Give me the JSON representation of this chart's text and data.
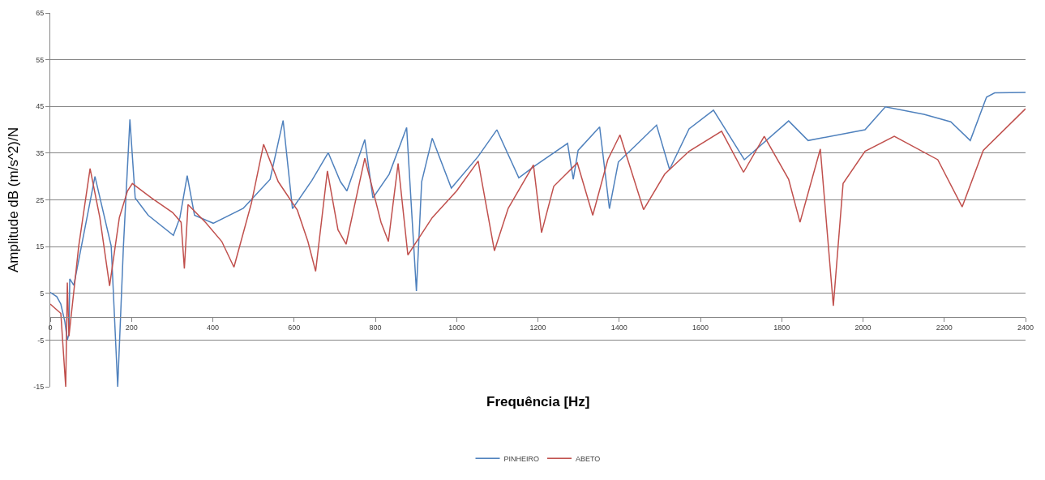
{
  "chart_data": {
    "type": "line",
    "xlabel": "Frequência [Hz]",
    "ylabel": "Amplitude dB (m/s^2)/N",
    "xlim": [
      0,
      2400
    ],
    "xticks": [
      0,
      200,
      400,
      600,
      800,
      1000,
      1200,
      1400,
      1600,
      1800,
      2000,
      2200,
      2400
    ],
    "ylim": [
      -15,
      65
    ],
    "yticks": [
      -15,
      -5,
      5,
      15,
      25,
      35,
      45,
      55,
      65
    ],
    "grid": "y",
    "legend": "bottom",
    "marker": "none",
    "line_style": "solid",
    "series": [
      {
        "name": "PINHEIRO",
        "color": "#4f81bd",
        "x": [
          0,
          16,
          26,
          36,
          42,
          46,
          48,
          58,
          110,
          150,
          166,
          180,
          196,
          209,
          241,
          303,
          319,
          337,
          355,
          401,
          475,
          541,
          573,
          596,
          644,
          684,
          714,
          730,
          774,
          794,
          834,
          877,
          901,
          914,
          940,
          987,
          1053,
          1099,
          1153,
          1193,
          1273,
          1287,
          1299,
          1352,
          1376,
          1398,
          1446,
          1492,
          1524,
          1572,
          1632,
          1708,
          1817,
          1865,
          2005,
          2055,
          2150,
          2216,
          2264,
          2304,
          2324,
          2400
        ],
        "values": [
          5.2,
          4.3,
          2.7,
          -1.1,
          -5,
          -3.7,
          8.1,
          6.7,
          30.0,
          15.1,
          -15,
          15,
          42.2,
          25.4,
          21.7,
          17.4,
          21.2,
          30.2,
          21.7,
          20.0,
          23.2,
          29.4,
          42.0,
          23.1,
          29.2,
          35.1,
          28.9,
          26.9,
          37.9,
          25.4,
          30.5,
          40.5,
          5.5,
          28.9,
          38.2,
          27.5,
          34.3,
          40.0,
          29.7,
          32.3,
          37.1,
          29.4,
          35.6,
          40.6,
          23.1,
          33.1,
          37.1,
          41.0,
          31.5,
          40.2,
          44.2,
          33.6,
          41.9,
          37.7,
          40.0,
          44.9,
          43.3,
          41.7,
          37.7,
          47.0,
          47.9,
          48.0
        ]
      },
      {
        "name": "ABETO",
        "color": "#c0504d",
        "x": [
          0,
          26,
          38,
          42,
          46,
          70,
          98,
          122,
          146,
          170,
          190,
          202,
          249,
          301,
          322,
          330,
          339,
          382,
          422,
          452,
          495,
          525,
          561,
          608,
          634,
          653,
          682,
          708,
          728,
          774,
          814,
          832,
          856,
          880,
          940,
          1000,
          1053,
          1093,
          1127,
          1189,
          1209,
          1239,
          1297,
          1335,
          1372,
          1402,
          1460,
          1512,
          1572,
          1652,
          1706,
          1757,
          1817,
          1845,
          1895,
          1927,
          1951,
          2005,
          2077,
          2184,
          2244,
          2296,
          2400
        ],
        "values": [
          2.7,
          0.7,
          -15,
          7.3,
          -4.2,
          15.1,
          31.7,
          21.2,
          6.6,
          21.2,
          26.9,
          28.5,
          25.4,
          22.3,
          20.2,
          10.3,
          24.0,
          20.2,
          16.1,
          10.6,
          24.3,
          36.9,
          28.9,
          22.8,
          16.1,
          9.7,
          31.2,
          18.6,
          15.5,
          33.9,
          20.2,
          16.1,
          32.8,
          13.2,
          21.2,
          26.9,
          33.3,
          14.1,
          23.2,
          32.5,
          18.0,
          27.9,
          32.9,
          21.7,
          33.6,
          38.9,
          22.9,
          30.5,
          35.4,
          39.7,
          30.9,
          38.6,
          29.4,
          20.2,
          35.9,
          2.3,
          28.5,
          35.4,
          38.6,
          33.6,
          23.5,
          35.6,
          44.5
        ]
      }
    ]
  }
}
